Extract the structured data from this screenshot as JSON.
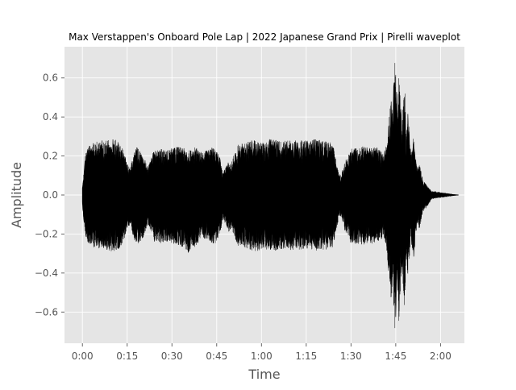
{
  "chart_data": {
    "type": "waveform",
    "title": "Max Verstappen's Onboard Pole Lap | 2022 Japanese Grand Prix | Pirelli waveplot",
    "xlabel": "Time",
    "ylabel": "Amplitude",
    "xlim": [
      -6,
      128
    ],
    "ylim": [
      -0.76,
      0.76
    ],
    "x_unit": "seconds",
    "x_ticks": [
      {
        "value": 0,
        "label": "0:00"
      },
      {
        "value": 15,
        "label": "0:15"
      },
      {
        "value": 30,
        "label": "0:30"
      },
      {
        "value": 45,
        "label": "0:45"
      },
      {
        "value": 60,
        "label": "1:00"
      },
      {
        "value": 75,
        "label": "1:15"
      },
      {
        "value": 90,
        "label": "1:30"
      },
      {
        "value": 105,
        "label": "1:45"
      },
      {
        "value": 120,
        "label": "2:00"
      }
    ],
    "y_ticks": [
      {
        "value": 0.6,
        "label": "0.6"
      },
      {
        "value": 0.4,
        "label": "0.4"
      },
      {
        "value": 0.2,
        "label": "0.2"
      },
      {
        "value": 0.0,
        "label": "0.0"
      },
      {
        "value": -0.2,
        "label": "−0.2"
      },
      {
        "value": -0.4,
        "label": "−0.4"
      },
      {
        "value": -0.6,
        "label": "−0.6"
      }
    ],
    "grid": true,
    "line_color": "#000000",
    "background_color": "#e5e5e5",
    "grid_color": "#ffffff",
    "duration_seconds": 126,
    "envelope": {
      "x": [
        0,
        0.5,
        1,
        2,
        4,
        6,
        8,
        10,
        12,
        13,
        14,
        15,
        16,
        17,
        18,
        20,
        22,
        24,
        26,
        28,
        30,
        32,
        34,
        36,
        38,
        40,
        42,
        44,
        46,
        47,
        48,
        49,
        50,
        52,
        54,
        56,
        58,
        60,
        62,
        64,
        66,
        68,
        70,
        72,
        74,
        76,
        78,
        80,
        82,
        84,
        85,
        86,
        87,
        88,
        89,
        90,
        92,
        94,
        96,
        98,
        100,
        101,
        102,
        103,
        103.5,
        104,
        104.5,
        105,
        105.5,
        106,
        107,
        108,
        108.5,
        109,
        110,
        111,
        112,
        113,
        114,
        115,
        116,
        117,
        126
      ],
      "max": [
        0.04,
        0.12,
        0.22,
        0.25,
        0.27,
        0.28,
        0.28,
        0.29,
        0.28,
        0.26,
        0.22,
        0.16,
        0.14,
        0.2,
        0.25,
        0.22,
        0.14,
        0.23,
        0.24,
        0.23,
        0.24,
        0.25,
        0.24,
        0.23,
        0.25,
        0.22,
        0.23,
        0.25,
        0.2,
        0.12,
        0.14,
        0.18,
        0.17,
        0.26,
        0.27,
        0.28,
        0.28,
        0.27,
        0.28,
        0.29,
        0.28,
        0.28,
        0.29,
        0.28,
        0.28,
        0.28,
        0.29,
        0.28,
        0.28,
        0.26,
        0.18,
        0.1,
        0.12,
        0.18,
        0.2,
        0.24,
        0.24,
        0.25,
        0.24,
        0.25,
        0.23,
        0.2,
        0.28,
        0.45,
        0.55,
        0.38,
        0.68,
        0.69,
        0.42,
        0.66,
        0.36,
        0.58,
        0.28,
        0.45,
        0.22,
        0.3,
        0.15,
        0.16,
        0.08,
        0.06,
        0.04,
        0.02,
        0.0
      ],
      "min": [
        -0.05,
        -0.14,
        -0.22,
        -0.26,
        -0.27,
        -0.28,
        -0.28,
        -0.29,
        -0.28,
        -0.26,
        -0.23,
        -0.17,
        -0.15,
        -0.21,
        -0.26,
        -0.23,
        -0.15,
        -0.24,
        -0.25,
        -0.24,
        -0.25,
        -0.26,
        -0.27,
        -0.31,
        -0.26,
        -0.22,
        -0.23,
        -0.26,
        -0.21,
        -0.13,
        -0.15,
        -0.19,
        -0.18,
        -0.26,
        -0.27,
        -0.28,
        -0.29,
        -0.28,
        -0.28,
        -0.29,
        -0.28,
        -0.28,
        -0.29,
        -0.28,
        -0.28,
        -0.28,
        -0.29,
        -0.28,
        -0.28,
        -0.27,
        -0.19,
        -0.11,
        -0.13,
        -0.19,
        -0.21,
        -0.25,
        -0.25,
        -0.26,
        -0.25,
        -0.25,
        -0.24,
        -0.21,
        -0.3,
        -0.46,
        -0.57,
        -0.4,
        -0.69,
        -0.7,
        -0.44,
        -0.67,
        -0.37,
        -0.6,
        -0.3,
        -0.46,
        -0.23,
        -0.32,
        -0.16,
        -0.17,
        -0.09,
        -0.07,
        -0.05,
        -0.02,
        0.0
      ]
    }
  }
}
